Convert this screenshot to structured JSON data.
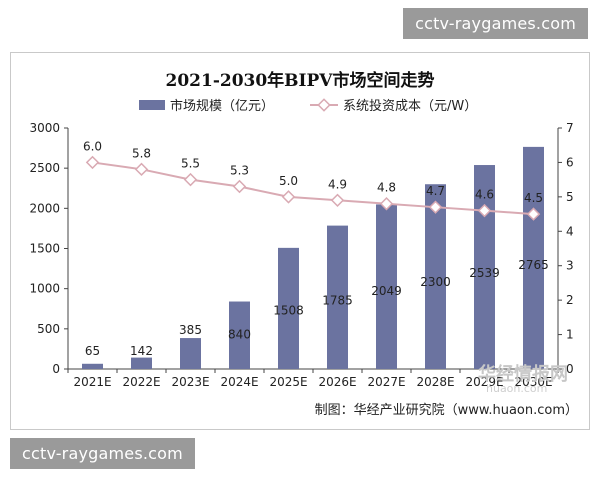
{
  "watermark": {
    "top": "cctv-raygames.com",
    "bottom": "cctv-raygames.com"
  },
  "chart_data": {
    "type": "bar+line",
    "title": "2021-2030年BIPV市场空间走势",
    "categories": [
      "2021E",
      "2022E",
      "2023E",
      "2024E",
      "2025E",
      "2026E",
      "2027E",
      "2028E",
      "2029E",
      "2030E"
    ],
    "series": [
      {
        "name": "市场规模（亿元）",
        "type": "bar",
        "axis": "left",
        "color": "#6b73a0",
        "values": [
          65,
          142,
          385,
          840,
          1508,
          1785,
          2049,
          2300,
          2539,
          2765
        ]
      },
      {
        "name": "系统投资成本（元/W）",
        "type": "line",
        "axis": "right",
        "color": "#d9aab3",
        "values": [
          6.0,
          5.8,
          5.5,
          5.3,
          5.0,
          4.9,
          4.8,
          4.7,
          4.6,
          4.5
        ]
      }
    ],
    "ylim_left": [
      0,
      3000
    ],
    "yticks_left": [
      "0",
      "500",
      "1000",
      "1500",
      "2000",
      "2500",
      "3000"
    ],
    "ylim_right": [
      0,
      7
    ],
    "yticks_right": [
      "0",
      "1",
      "2",
      "3",
      "4",
      "5",
      "6",
      "7"
    ],
    "legend_position": "top",
    "grid": false,
    "source": "制图：华经产业研究院（www.huaon.com）"
  },
  "logo_watermark": {
    "name": "华经情报网",
    "url": "huaon.com"
  }
}
